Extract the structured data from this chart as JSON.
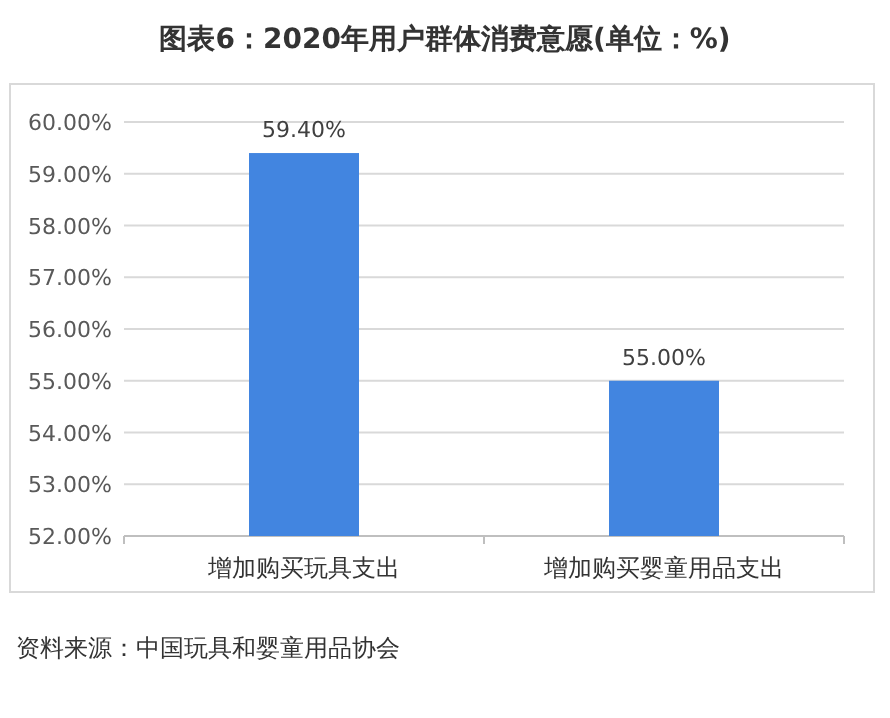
{
  "chart_data": {
    "type": "bar",
    "title": "图表6：2020年用户群体消费意愿(单位：%)",
    "categories": [
      "增加购买玩具支出",
      "增加购买婴童用品支出"
    ],
    "values": [
      59.4,
      55.0
    ],
    "color": "#4285e0",
    "value_labels": [
      "59.40%",
      "55.00%"
    ],
    "ylim": [
      52,
      60
    ],
    "yticks": [
      {
        "value": 52,
        "label": "52.00%"
      },
      {
        "value": 53,
        "label": "53.00%"
      },
      {
        "value": 54,
        "label": "54.00%"
      },
      {
        "value": 55,
        "label": "55.00%"
      },
      {
        "value": 56,
        "label": "56.00%"
      },
      {
        "value": 57,
        "label": "57.00%"
      },
      {
        "value": 58,
        "label": "58.00%"
      },
      {
        "value": 59,
        "label": "59.00%"
      },
      {
        "value": 60,
        "label": "60.00%"
      }
    ],
    "grid": "y",
    "annotations": [
      "资料来源：中国玩具和婴童用品协会"
    ]
  }
}
